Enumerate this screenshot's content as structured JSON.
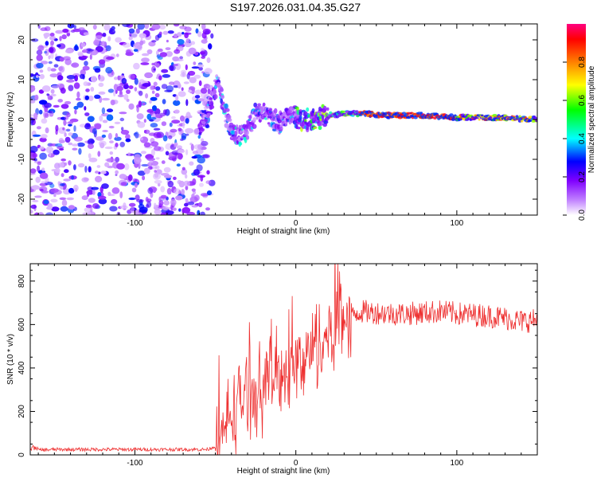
{
  "title": "S197.2026.031.04.35.G27",
  "chart_data": [
    {
      "type": "heatmap",
      "title": "S197.2026.031.04.35.G27",
      "xlabel": "Height of straight line (km)",
      "ylabel": "Frequency (Hz)",
      "xlim": [
        -165,
        150
      ],
      "ylim": [
        -24,
        24
      ],
      "xticks": [
        -100,
        0,
        100
      ],
      "yticks": [
        -20,
        -10,
        0,
        10,
        20
      ],
      "colorbar": {
        "label": "Normalized spectral amplitude",
        "range": [
          0,
          1
        ],
        "ticks": [
          0.0,
          0.2,
          0.4,
          0.6,
          0.8
        ],
        "colormap": [
          "#ffffff",
          "#c080ff",
          "#8000ff",
          "#0000ff",
          "#00ffff",
          "#00ff00",
          "#ffff00",
          "#ff8000",
          "#ff0000",
          "#ff0080"
        ]
      },
      "structure": {
        "noise_region_x": [
          -165,
          -60
        ],
        "signal_track": {
          "x": [
            -60,
            -52,
            -48,
            -45,
            -40,
            -35,
            -30,
            -25,
            -20,
            -15,
            -10,
            -5,
            0,
            5,
            10,
            20,
            30,
            40,
            60,
            80,
            100,
            120,
            150
          ],
          "freq": [
            -3,
            5,
            10,
            3,
            -3,
            -4,
            -2,
            1,
            2,
            0,
            -1,
            1,
            1,
            0,
            0,
            1,
            1.5,
            1.5,
            1,
            1,
            0.5,
            0.5,
            0
          ]
        }
      }
    },
    {
      "type": "line",
      "xlabel": "Height of straight line (km)",
      "ylabel": "SNR (10 * v/v)",
      "xlim": [
        -165,
        150
      ],
      "ylim": [
        0,
        880
      ],
      "xticks": [
        -100,
        0,
        100
      ],
      "yticks": [
        0,
        200,
        400,
        600,
        800
      ],
      "color": "#ee3030",
      "series": [
        {
          "name": "SNR",
          "x": [
            -165,
            -150,
            -130,
            -110,
            -90,
            -70,
            -55,
            -50,
            -45,
            -40,
            -35,
            -30,
            -25,
            -20,
            -15,
            -10,
            -5,
            0,
            5,
            10,
            15,
            20,
            25,
            30,
            40,
            50,
            60,
            70,
            80,
            90,
            100,
            110,
            120,
            130,
            140,
            150
          ],
          "values": [
            20,
            25,
            25,
            25,
            25,
            25,
            25,
            40,
            100,
            200,
            250,
            290,
            300,
            320,
            360,
            380,
            400,
            400,
            430,
            480,
            520,
            560,
            600,
            640,
            660,
            655,
            650,
            650,
            655,
            660,
            650,
            645,
            640,
            630,
            615,
            620
          ]
        }
      ]
    }
  ]
}
